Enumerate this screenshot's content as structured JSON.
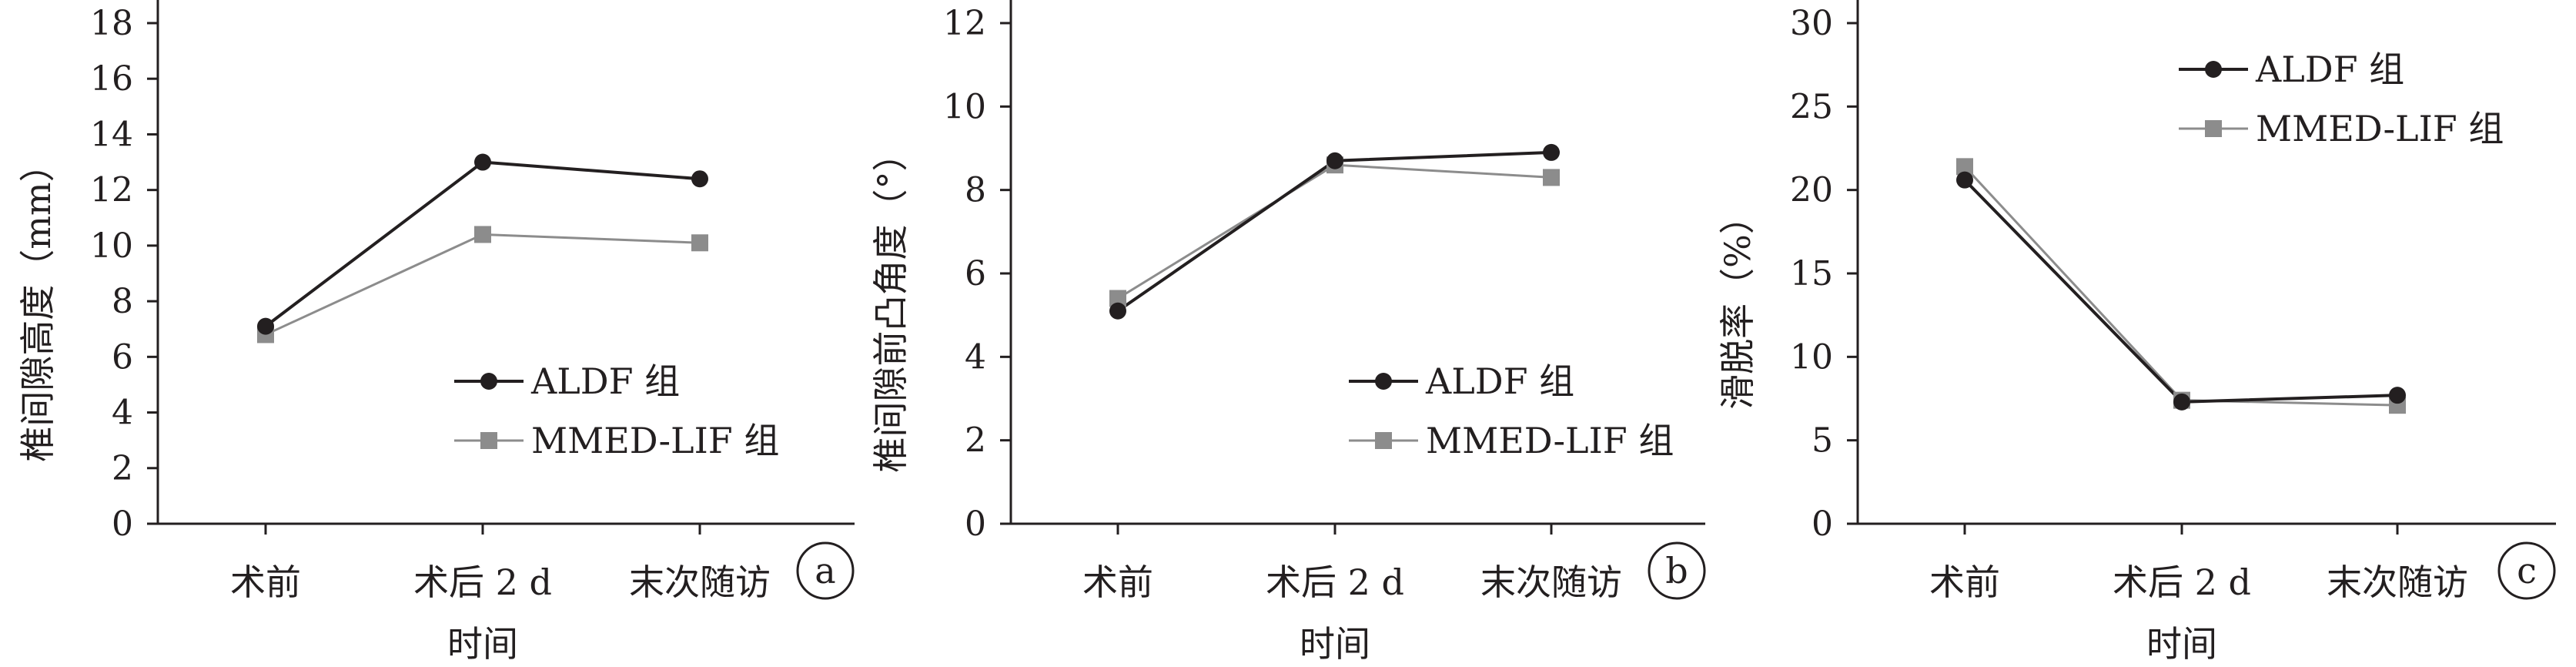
{
  "chart_data": [
    {
      "type": "line",
      "panel_label": "a",
      "categories": [
        "术前",
        "术后 2 d",
        "末次随访"
      ],
      "xlabel": "时间",
      "ylabel": "椎间隙高度（mm）",
      "ylim": [
        0,
        18
      ],
      "yticks": [
        0,
        2,
        4,
        6,
        8,
        10,
        12,
        14,
        16,
        18
      ],
      "legend_position": "lower-right",
      "series": [
        {
          "name": "ALDF 组",
          "marker": "circle",
          "color": "#231f20",
          "values": [
            7.1,
            13.0,
            12.4
          ]
        },
        {
          "name": "MMED-LIF 组",
          "marker": "square",
          "color": "#8c8c8c",
          "values": [
            6.8,
            10.4,
            10.1
          ]
        }
      ]
    },
    {
      "type": "line",
      "panel_label": "b",
      "categories": [
        "术前",
        "术后 2 d",
        "末次随访"
      ],
      "xlabel": "时间",
      "ylabel": "椎间隙前凸角度（°）",
      "ylim": [
        0,
        12
      ],
      "yticks": [
        0,
        2,
        4,
        6,
        8,
        10,
        12
      ],
      "legend_position": "lower-right",
      "series": [
        {
          "name": "ALDF 组",
          "marker": "circle",
          "color": "#231f20",
          "values": [
            5.1,
            8.7,
            8.9
          ]
        },
        {
          "name": "MMED-LIF 组",
          "marker": "square",
          "color": "#8c8c8c",
          "values": [
            5.4,
            8.6,
            8.3
          ]
        }
      ]
    },
    {
      "type": "line",
      "panel_label": "c",
      "categories": [
        "术前",
        "术后 2 d",
        "末次随访"
      ],
      "xlabel": "时间",
      "ylabel": "滑脱率（%）",
      "ylim": [
        0,
        30
      ],
      "yticks": [
        0,
        5,
        10,
        15,
        20,
        25,
        30
      ],
      "legend_position": "upper-right",
      "series": [
        {
          "name": "ALDF 组",
          "marker": "circle",
          "color": "#231f20",
          "values": [
            20.6,
            7.3,
            7.7
          ]
        },
        {
          "name": "MMED-LIF 组",
          "marker": "square",
          "color": "#8c8c8c",
          "values": [
            21.4,
            7.4,
            7.1
          ]
        }
      ]
    }
  ]
}
